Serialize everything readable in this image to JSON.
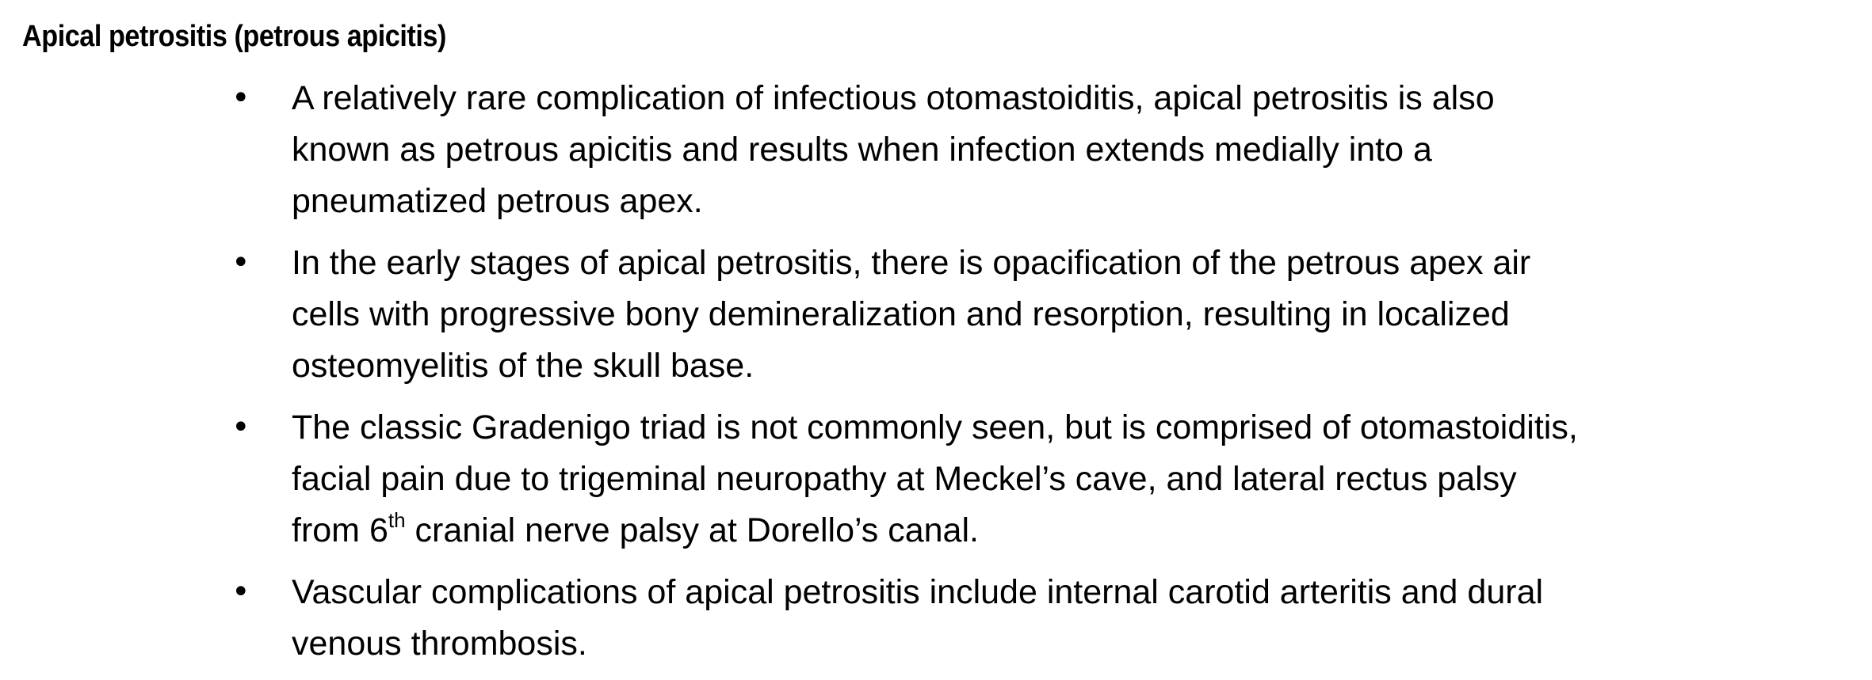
{
  "title": "Apical petrositis (petrous apicitis)",
  "bullets": [
    {
      "lines": [
        "A relatively rare complication of infectious otomastoiditis, apical petrositis is also",
        "known as petrous apicitis and results when infection extends medially into a",
        "pneumatized petrous apex."
      ]
    },
    {
      "lines": [
        "In the early stages of apical petrositis, there is opacification of the petrous apex air",
        "cells with progressive bony demineralization and resorption, resulting in localized",
        "osteomyelitis of the skull base."
      ]
    },
    {
      "lines": [
        "The classic Gradenigo triad is not commonly seen, but is comprised of otomastoiditis,",
        "facial pain due to trigeminal neuropathy at Meckel’s cave, and lateral rectus palsy"
      ],
      "last_line_prefix": "from 6",
      "last_line_sup": "th",
      "last_line_suffix": " cranial nerve palsy at Dorello’s canal."
    },
    {
      "lines": [
        "Vascular complications of apical petrositis include internal carotid arteritis and dural",
        "venous thrombosis."
      ]
    }
  ],
  "bullet_symbol": "•"
}
